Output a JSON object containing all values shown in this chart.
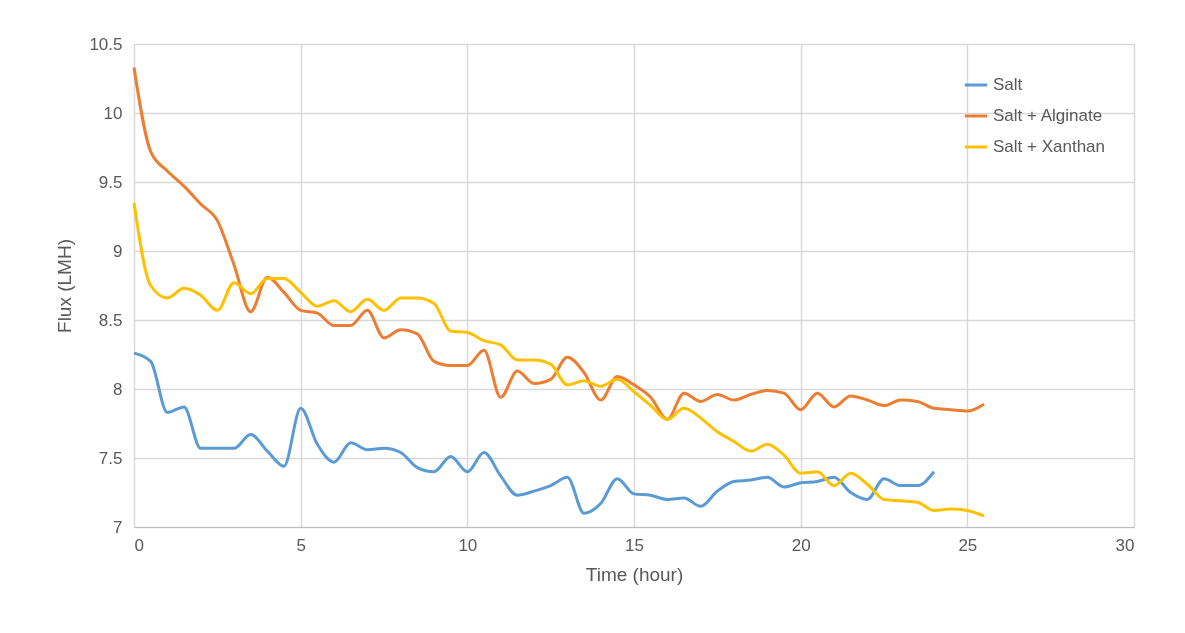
{
  "chart_data": {
    "type": "line",
    "xlabel": "Time (hour)",
    "ylabel": "Flux (LMH)",
    "x": [
      0,
      0.5,
      1,
      1.5,
      2,
      2.5,
      3,
      3.5,
      4,
      4.5,
      5,
      5.5,
      6,
      6.5,
      7,
      7.5,
      8,
      8.5,
      9,
      9.5,
      10,
      10.5,
      11,
      11.5,
      12,
      12.5,
      13,
      13.5,
      14,
      14.5,
      15,
      15.5,
      16,
      16.5,
      17,
      17.5,
      18,
      18.5,
      19,
      19.5,
      20,
      20.5,
      21,
      21.5,
      22,
      22.5,
      23,
      23.5,
      24,
      24.5,
      25,
      25.5
    ],
    "series": [
      {
        "name": "Salt",
        "color": "#5b9bd5",
        "values": [
          8.26,
          8.2,
          7.83,
          7.87,
          7.57,
          7.57,
          7.57,
          7.67,
          7.55,
          7.44,
          7.86,
          7.6,
          7.47,
          7.61,
          7.56,
          7.57,
          7.54,
          7.43,
          7.4,
          7.51,
          7.4,
          7.54,
          7.37,
          7.23,
          7.26,
          7.3,
          7.36,
          7.1,
          7.17,
          7.35,
          7.24,
          7.23,
          7.2,
          7.21,
          7.15,
          7.26,
          7.33,
          7.34,
          7.36,
          7.29,
          7.32,
          7.33,
          7.36,
          7.25,
          7.2,
          7.35,
          7.3,
          7.3,
          7.4,
          null,
          null,
          null
        ]
      },
      {
        "name": "Salt + Alginate",
        "color": "#ed7d31",
        "values": [
          10.33,
          9.72,
          9.58,
          9.47,
          9.34,
          9.22,
          8.9,
          8.56,
          8.81,
          8.7,
          8.57,
          8.55,
          8.46,
          8.46,
          8.57,
          8.37,
          8.43,
          8.4,
          8.2,
          8.17,
          8.17,
          8.28,
          7.94,
          8.13,
          8.04,
          8.07,
          8.23,
          8.12,
          7.92,
          8.09,
          8.03,
          7.94,
          7.78,
          7.97,
          7.91,
          7.96,
          7.92,
          7.96,
          7.99,
          7.97,
          7.85,
          7.97,
          7.87,
          7.95,
          7.92,
          7.88,
          7.92,
          7.91,
          7.86,
          7.85,
          7.84,
          7.89
        ]
      },
      {
        "name": "Salt + Xanthan",
        "color": "#ffc000",
        "values": [
          9.35,
          8.75,
          8.66,
          8.73,
          8.68,
          8.57,
          8.77,
          8.69,
          8.8,
          8.8,
          8.7,
          8.6,
          8.64,
          8.56,
          8.65,
          8.57,
          8.66,
          8.66,
          8.62,
          8.42,
          8.41,
          8.35,
          8.32,
          8.21,
          8.21,
          8.18,
          8.03,
          8.06,
          8.02,
          8.07,
          7.98,
          7.88,
          7.78,
          7.86,
          7.79,
          7.69,
          7.62,
          7.55,
          7.6,
          7.52,
          7.39,
          7.4,
          7.3,
          7.39,
          7.31,
          7.2,
          7.19,
          7.18,
          7.12,
          7.13,
          7.12,
          7.08
        ]
      }
    ],
    "xlim": [
      0,
      30
    ],
    "xticks": [
      0,
      5,
      10,
      15,
      20,
      25,
      30
    ],
    "ylim": [
      7,
      10.5
    ],
    "yticks": [
      7,
      7.5,
      8,
      8.5,
      9,
      9.5,
      10,
      10.5
    ],
    "grid": true,
    "legend": "top right",
    "marker": "none",
    "line_style": "solid"
  }
}
